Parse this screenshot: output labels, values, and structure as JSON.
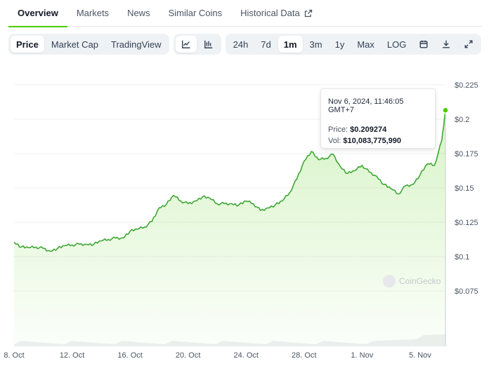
{
  "tabs": [
    {
      "label": "Overview",
      "active": true
    },
    {
      "label": "Markets"
    },
    {
      "label": "News"
    },
    {
      "label": "Similar Coins"
    },
    {
      "label": "Historical Data",
      "external": true
    }
  ],
  "toolbar": {
    "chart_types": [
      {
        "label": "Price",
        "active": true
      },
      {
        "label": "Market Cap"
      },
      {
        "label": "TradingView"
      }
    ],
    "views": [
      {
        "icon": "line-chart-icon",
        "active": true
      },
      {
        "icon": "candlestick-chart-icon"
      }
    ],
    "ranges": [
      {
        "label": "24h"
      },
      {
        "label": "7d"
      },
      {
        "label": "1m",
        "active": true
      },
      {
        "label": "3m"
      },
      {
        "label": "1y"
      },
      {
        "label": "Max"
      },
      {
        "label": "LOG"
      }
    ],
    "actions": [
      {
        "icon": "calendar-icon"
      },
      {
        "icon": "download-icon"
      },
      {
        "icon": "fullscreen-icon"
      }
    ]
  },
  "tooltip": {
    "date": "Nov 6, 2024, 11:46:05 GMT+7",
    "price_label": "Price:",
    "price": "$0.209274",
    "vol_label": "Vol:",
    "vol": "$10,083,775,990"
  },
  "watermark": "CoinGecko",
  "colors": {
    "accent": "#4bcc00",
    "line": "#3ea734"
  },
  "chart_data": {
    "type": "area",
    "y_ticks": [
      "$0.225",
      "$0.2",
      "$0.175",
      "$0.15",
      "$0.125",
      "$0.1",
      "$0.075"
    ],
    "y_tick_values": [
      0.225,
      0.2,
      0.175,
      0.15,
      0.125,
      0.1,
      0.075
    ],
    "x_ticks": [
      "8. Oct",
      "12. Oct",
      "16. Oct",
      "20. Oct",
      "24. Oct",
      "28. Oct",
      "1. Nov",
      "5. Nov"
    ],
    "x_tick_days": [
      0,
      4,
      8,
      12,
      16,
      20,
      24,
      28
    ],
    "ylim": [
      0.05,
      0.225
    ],
    "series": [
      {
        "x": [
          0,
          0.5,
          1,
          1.5,
          2,
          2.5,
          3,
          3.5,
          4,
          4.5,
          5,
          5.5,
          6,
          6.5,
          7,
          7.5,
          8,
          8.5,
          9,
          9.5,
          10,
          10.5,
          11,
          11.5,
          12,
          12.5,
          13,
          13.5,
          14,
          14.5,
          15,
          15.5,
          16,
          16.5,
          17,
          17.5,
          18,
          18.5,
          19,
          19.5,
          20,
          20.5,
          21,
          21.5,
          22,
          22.5,
          23,
          23.5,
          24,
          24.5,
          25,
          25.5,
          26,
          26.5,
          27,
          27.5,
          28,
          28.5,
          29,
          29.5,
          29.75
        ],
        "y": [
          0.1105,
          0.107,
          0.1065,
          0.107,
          0.106,
          0.104,
          0.106,
          0.108,
          0.1085,
          0.109,
          0.109,
          0.109,
          0.1115,
          0.1125,
          0.1135,
          0.1135,
          0.1185,
          0.12,
          0.1215,
          0.1255,
          0.1355,
          0.138,
          0.1445,
          0.1405,
          0.1385,
          0.1405,
          0.1435,
          0.1425,
          0.1385,
          0.1385,
          0.1385,
          0.1375,
          0.1405,
          0.1385,
          0.1335,
          0.1355,
          0.1375,
          0.1405,
          0.1465,
          0.1565,
          0.1695,
          0.1765,
          0.1705,
          0.1715,
          0.1745,
          0.1655,
          0.1605,
          0.1625,
          0.1665,
          0.1615,
          0.1585,
          0.1525,
          0.1495,
          0.1455,
          0.1515,
          0.1525,
          0.1595,
          0.1675,
          0.1665,
          0.1845,
          0.2065
        ]
      }
    ]
  }
}
